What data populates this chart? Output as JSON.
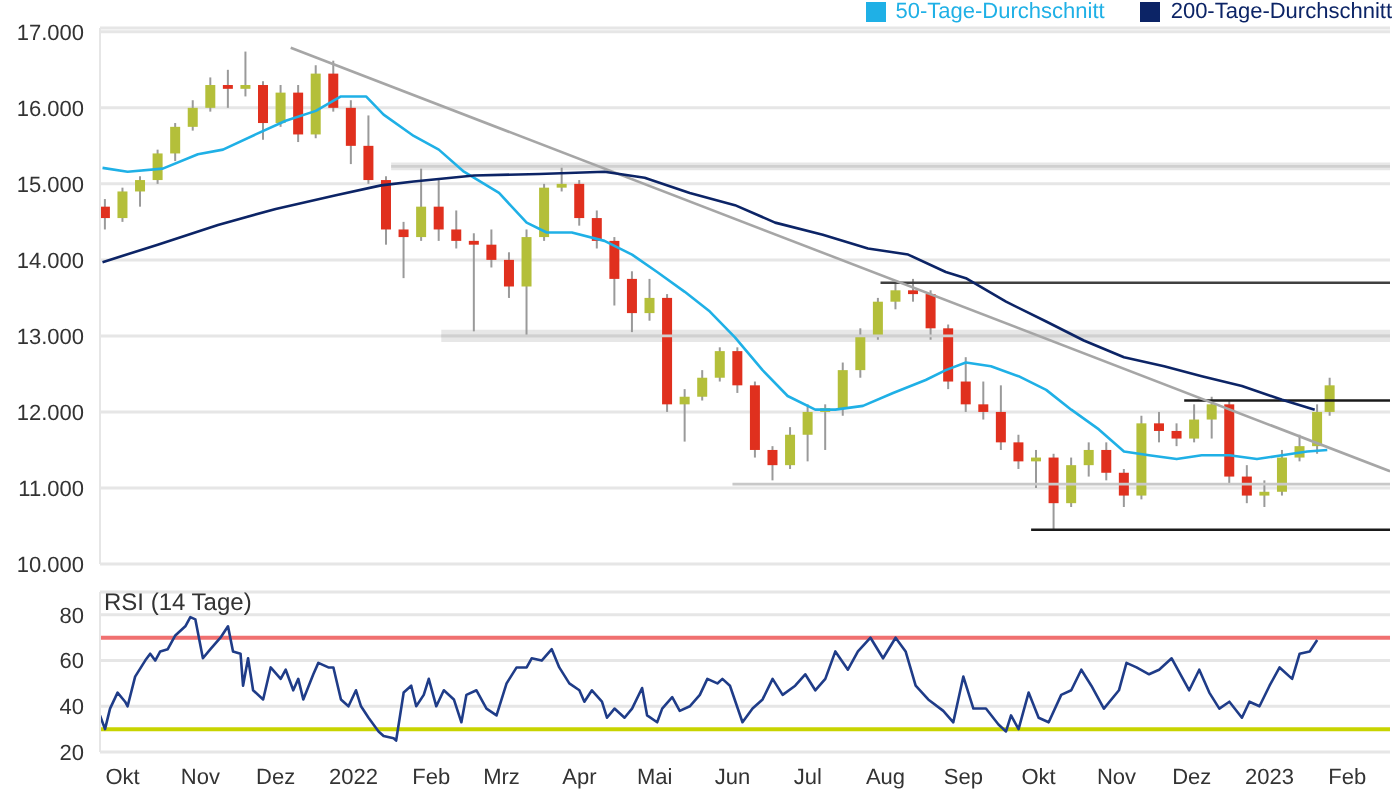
{
  "chart_data": [
    {
      "type": "candlestick",
      "xlim": [
        "2021-09-22",
        "2023-02-18"
      ],
      "ylim": [
        10000,
        17050
      ],
      "yticks": [
        {
          "value": 10000,
          "label": "10.000"
        },
        {
          "value": 11000,
          "label": "11.000"
        },
        {
          "value": 12000,
          "label": "12.000"
        },
        {
          "value": 13000,
          "label": "13.000"
        },
        {
          "value": 14000,
          "label": "14.000"
        },
        {
          "value": 15000,
          "label": "15.000"
        },
        {
          "value": 16000,
          "label": "16.000"
        },
        {
          "value": 17000,
          "label": "17.000"
        }
      ],
      "grid": "y",
      "legend": "top right",
      "tick_labels": "y",
      "series": [
        {
          "x": [
            "2021-09-24",
            "2021-10-01",
            "2021-10-08",
            "2021-10-15",
            "2021-10-22",
            "2021-10-29",
            "2021-11-05",
            "2021-11-12",
            "2021-11-19",
            "2021-11-26",
            "2021-12-03",
            "2021-12-10",
            "2021-12-17",
            "2021-12-24",
            "2021-12-31",
            "2022-01-07",
            "2022-01-14",
            "2022-01-21",
            "2022-01-28",
            "2022-02-04",
            "2022-02-11",
            "2022-02-18",
            "2022-02-25",
            "2022-03-04",
            "2022-03-11",
            "2022-03-18",
            "2022-03-25",
            "2022-04-01",
            "2022-04-08",
            "2022-04-15",
            "2022-04-22",
            "2022-04-29",
            "2022-05-06",
            "2022-05-13",
            "2022-05-20",
            "2022-05-27",
            "2022-06-03",
            "2022-06-10",
            "2022-06-17",
            "2022-06-24",
            "2022-07-01",
            "2022-07-08",
            "2022-07-15",
            "2022-07-22",
            "2022-07-29",
            "2022-08-05",
            "2022-08-12",
            "2022-08-19",
            "2022-08-26",
            "2022-09-02",
            "2022-09-09",
            "2022-09-16",
            "2022-09-23",
            "2022-09-30",
            "2022-10-07",
            "2022-10-14",
            "2022-10-21",
            "2022-10-28",
            "2022-11-04",
            "2022-11-11",
            "2022-11-18",
            "2022-11-25",
            "2022-12-02",
            "2022-12-09",
            "2022-12-16",
            "2022-12-23",
            "2022-12-30",
            "2023-01-06",
            "2023-01-13",
            "2023-01-20",
            "2023-01-25"
          ],
          "ohlc": [
            [
              14700,
              14800,
              14400,
              14550
            ],
            [
              14550,
              14950,
              14500,
              14900
            ],
            [
              14900,
              15100,
              14700,
              15050
            ],
            [
              15050,
              15450,
              15000,
              15400
            ],
            [
              15400,
              15800,
              15300,
              15750
            ],
            [
              15750,
              16100,
              15700,
              16000
            ],
            [
              16000,
              16400,
              15950,
              16300
            ],
            [
              16300,
              16500,
              16000,
              16250
            ],
            [
              16250,
              16740,
              16150,
              16300
            ],
            [
              16300,
              16350,
              15580,
              15800
            ],
            [
              15800,
              16300,
              15750,
              16200
            ],
            [
              16200,
              16300,
              15550,
              15650
            ],
            [
              15650,
              16560,
              15600,
              16450
            ],
            [
              16450,
              16620,
              15950,
              16000
            ],
            [
              16000,
              16100,
              15260,
              15500
            ],
            [
              15500,
              15900,
              15000,
              15050
            ],
            [
              15050,
              15100,
              14200,
              14400
            ],
            [
              14400,
              14500,
              13760,
              14300
            ],
            [
              14300,
              15200,
              14250,
              14700
            ],
            [
              14700,
              15050,
              14250,
              14400
            ],
            [
              14400,
              14650,
              14150,
              14250
            ],
            [
              14250,
              14350,
              13060,
              14200
            ],
            [
              14200,
              14400,
              13900,
              14000
            ],
            [
              14000,
              14100,
              13500,
              13650
            ],
            [
              13650,
              14400,
              13000,
              14300
            ],
            [
              14300,
              15000,
              14250,
              14950
            ],
            [
              14950,
              15250,
              14900,
              15000
            ],
            [
              15000,
              15050,
              14450,
              14550
            ],
            [
              14550,
              14650,
              14150,
              14250
            ],
            [
              14250,
              14300,
              13400,
              13750
            ],
            [
              13750,
              13850,
              13050,
              13300
            ],
            [
              13300,
              13750,
              13200,
              13500
            ],
            [
              13500,
              13550,
              12000,
              12100
            ],
            [
              12100,
              12300,
              11610,
              12200
            ],
            [
              12200,
              12550,
              12150,
              12450
            ],
            [
              12450,
              12850,
              12400,
              12800
            ],
            [
              12800,
              12850,
              12250,
              12350
            ],
            [
              12350,
              12400,
              11400,
              11500
            ],
            [
              11500,
              11550,
              11100,
              11300
            ],
            [
              11300,
              11800,
              11250,
              11700
            ],
            [
              11700,
              12100,
              11350,
              12000
            ],
            [
              12000,
              12100,
              11500,
              12050
            ],
            [
              12050,
              12650,
              11950,
              12550
            ],
            [
              12550,
              13100,
              12450,
              13000
            ],
            [
              13000,
              13500,
              12950,
              13450
            ],
            [
              13450,
              13700,
              13350,
              13600
            ],
            [
              13600,
              13750,
              13450,
              13550
            ],
            [
              13550,
              13600,
              12950,
              13100
            ],
            [
              13100,
              13150,
              12300,
              12400
            ],
            [
              12400,
              12720,
              12000,
              12100
            ],
            [
              12100,
              12400,
              11900,
              12000
            ],
            [
              12000,
              12350,
              11500,
              11600
            ],
            [
              11600,
              11700,
              11250,
              11350
            ],
            [
              11350,
              11500,
              11000,
              11400
            ],
            [
              11400,
              11450,
              10450,
              10800
            ],
            [
              10800,
              11400,
              10750,
              11300
            ],
            [
              11300,
              11600,
              11150,
              11500
            ],
            [
              11500,
              11600,
              11100,
              11200
            ],
            [
              11200,
              11250,
              10750,
              10900
            ],
            [
              10900,
              11950,
              10850,
              11850
            ],
            [
              11850,
              12000,
              11600,
              11750
            ],
            [
              11750,
              11850,
              11550,
              11650
            ],
            [
              11650,
              12100,
              11600,
              11900
            ],
            [
              11900,
              12200,
              11650,
              12100
            ],
            [
              12100,
              12150,
              11050,
              11150
            ],
            [
              11150,
              11300,
              10800,
              10900
            ],
            [
              10900,
              11100,
              10750,
              10950
            ],
            [
              10950,
              11500,
              10900,
              11400
            ],
            [
              11400,
              11700,
              11350,
              11550
            ],
            [
              11550,
              12100,
              11450,
              12000
            ],
            [
              12000,
              12450,
              11950,
              12350
            ]
          ],
          "colors": [
            "#e0301e",
            "#b4bf3a",
            "#b4bf3a",
            "#b4bf3a",
            "#b4bf3a",
            "#b4bf3a",
            "#b4bf3a",
            "#e0301e",
            "#b4bf3a",
            "#e0301e",
            "#b4bf3a",
            "#e0301e",
            "#b4bf3a",
            "#e0301e",
            "#e0301e",
            "#e0301e",
            "#e0301e",
            "#e0301e",
            "#b4bf3a",
            "#e0301e",
            "#e0301e",
            "#e0301e",
            "#e0301e",
            "#e0301e",
            "#b4bf3a",
            "#b4bf3a",
            "#b4bf3a",
            "#e0301e",
            "#e0301e",
            "#e0301e",
            "#e0301e",
            "#b4bf3a",
            "#e0301e",
            "#b4bf3a",
            "#b4bf3a",
            "#b4bf3a",
            "#e0301e",
            "#e0301e",
            "#e0301e",
            "#b4bf3a",
            "#b4bf3a",
            "#b4bf3a",
            "#b4bf3a",
            "#b4bf3a",
            "#b4bf3a",
            "#b4bf3a",
            "#e0301e",
            "#e0301e",
            "#e0301e",
            "#e0301e",
            "#e0301e",
            "#e0301e",
            "#e0301e",
            "#b4bf3a",
            "#e0301e",
            "#b4bf3a",
            "#b4bf3a",
            "#e0301e",
            "#e0301e",
            "#b4bf3a",
            "#e0301e",
            "#e0301e",
            "#b4bf3a",
            "#b4bf3a",
            "#e0301e",
            "#e0301e",
            "#b4bf3a",
            "#b4bf3a",
            "#b4bf3a",
            "#b4bf3a",
            "#b4bf3a"
          ]
        },
        {
          "type": "line",
          "color": "#d0d0d0",
          "x": [
            "2022-01-16",
            "2023-02-18"
          ],
          "values": [
            15230,
            15230
          ],
          "lower": [
            15180,
            15180
          ],
          "upper": [
            15280,
            15280
          ]
        },
        {
          "type": "line",
          "color": "#d0d0d0",
          "x": [
            "2022-02-05",
            "2023-02-18"
          ],
          "values": [
            13000,
            13000
          ],
          "lower": [
            12920,
            12920
          ],
          "upper": [
            13080,
            13080
          ]
        },
        {
          "type": "line",
          "color": "#404040",
          "x": [
            "2022-07-30",
            "2023-02-18"
          ],
          "values": [
            13700,
            13700
          ]
        },
        {
          "type": "line",
          "color": "#1a1a1a",
          "x": [
            "2022-11-28",
            "2023-02-18"
          ],
          "values": [
            12150,
            12150
          ]
        },
        {
          "type": "line",
          "color": "#c8c8c8",
          "x": [
            "2022-06-01",
            "2023-02-18"
          ],
          "values": [
            11050,
            11050
          ]
        },
        {
          "type": "line",
          "color": "#1a1a1a",
          "x": [
            "2022-09-28",
            "2023-02-18"
          ],
          "values": [
            10450,
            10450
          ]
        },
        {
          "type": "line",
          "color": "#a6a6a6",
          "x": [
            "2021-12-07",
            "2023-02-18"
          ],
          "values": [
            16790,
            11220
          ]
        },
        {
          "type": "line",
          "name": "50-Tage-Durchschnitt",
          "color": "#1fb0e6",
          "x": [
            "2021-09-23",
            "2021-10-03",
            "2021-10-17",
            "2021-10-31",
            "2021-11-10",
            "2021-11-23",
            "2021-12-05",
            "2021-12-17",
            "2021-12-27",
            "2022-01-06",
            "2022-01-13",
            "2022-01-25",
            "2022-02-04",
            "2022-02-14",
            "2022-02-28",
            "2022-03-11",
            "2022-03-19",
            "2022-03-29",
            "2022-04-11",
            "2022-04-22",
            "2022-05-02",
            "2022-05-13",
            "2022-05-23",
            "2022-06-02",
            "2022-06-13",
            "2022-06-23",
            "2022-07-04",
            "2022-07-12",
            "2022-07-23",
            "2022-08-04",
            "2022-08-17",
            "2022-08-25",
            "2022-09-02",
            "2022-09-12",
            "2022-09-23",
            "2022-10-04",
            "2022-10-14",
            "2022-10-25",
            "2022-11-04",
            "2022-11-14",
            "2022-11-25",
            "2022-12-05",
            "2022-12-16",
            "2022-12-27",
            "2023-01-06",
            "2023-01-16",
            "2023-01-24"
          ],
          "values": [
            15210,
            15160,
            15200,
            15390,
            15450,
            15650,
            15830,
            15960,
            16150,
            16150,
            15910,
            15630,
            15450,
            15160,
            14880,
            14490,
            14360,
            14360,
            14250,
            14070,
            13840,
            13580,
            13320,
            12980,
            12550,
            12210,
            12030,
            12030,
            12080,
            12250,
            12420,
            12550,
            12650,
            12600,
            12470,
            12290,
            12030,
            11770,
            11480,
            11430,
            11380,
            11430,
            11430,
            11380,
            11430,
            11480,
            11500
          ]
        },
        {
          "type": "line",
          "name": "200-Tage-Durchschnitt",
          "color": "#0c2466",
          "x": [
            "2021-09-23",
            "2021-10-15",
            "2021-11-08",
            "2021-12-01",
            "2021-12-25",
            "2022-01-12",
            "2022-01-25",
            "2022-02-18",
            "2022-03-16",
            "2022-04-11",
            "2022-04-27",
            "2022-05-15",
            "2022-06-02",
            "2022-06-18",
            "2022-07-07",
            "2022-07-25",
            "2022-08-10",
            "2022-08-25",
            "2022-09-02",
            "2022-09-18",
            "2022-10-04",
            "2022-10-19",
            "2022-11-04",
            "2022-11-20",
            "2022-12-05",
            "2022-12-21",
            "2023-01-06",
            "2023-01-19"
          ],
          "values": [
            13970,
            14200,
            14460,
            14670,
            14850,
            14980,
            15030,
            15110,
            15130,
            15160,
            15080,
            14880,
            14720,
            14490,
            14330,
            14150,
            14070,
            13840,
            13760,
            13450,
            13190,
            12940,
            12720,
            12600,
            12470,
            12340,
            12160,
            12030
          ]
        }
      ]
    },
    {
      "type": "line",
      "title": "RSI (14 Tage)",
      "xlim": [
        "2021-09-22",
        "2023-02-18"
      ],
      "xticks": [
        {
          "value": "2021-10-01",
          "label": "Okt"
        },
        {
          "value": "2021-11-01",
          "label": "Nov"
        },
        {
          "value": "2021-12-01",
          "label": "Dez"
        },
        {
          "value": "2022-01-01",
          "label": "2022"
        },
        {
          "value": "2022-02-01",
          "label": "Feb"
        },
        {
          "value": "2022-03-01",
          "label": "Mrz"
        },
        {
          "value": "2022-04-01",
          "label": "Apr"
        },
        {
          "value": "2022-05-01",
          "label": "Mai"
        },
        {
          "value": "2022-06-01",
          "label": "Jun"
        },
        {
          "value": "2022-07-01",
          "label": "Jul"
        },
        {
          "value": "2022-08-01",
          "label": "Aug"
        },
        {
          "value": "2022-09-01",
          "label": "Sep"
        },
        {
          "value": "2022-10-01",
          "label": "Okt"
        },
        {
          "value": "2022-11-01",
          "label": "Nov"
        },
        {
          "value": "2022-12-01",
          "label": "Dez"
        },
        {
          "value": "2023-01-01",
          "label": "2023"
        },
        {
          "value": "2023-02-01",
          "label": "Feb"
        }
      ],
      "ylim": [
        20,
        90
      ],
      "yticks": [
        20,
        40,
        60,
        80
      ],
      "grid": "y",
      "ref_lines": [
        {
          "axis": "y",
          "value": 70,
          "color": "#f07070"
        },
        {
          "axis": "y",
          "value": 30,
          "color": "#c8d400"
        }
      ],
      "series": [
        {
          "color": "#1f3c88",
          "x": [
            "2021-09-22",
            "2021-09-24",
            "2021-09-26",
            "2021-09-29",
            "2021-10-02",
            "2021-10-03",
            "2021-10-06",
            "2021-10-10",
            "2021-10-12",
            "2021-10-14",
            "2021-10-16",
            "2021-10-19",
            "2021-10-22",
            "2021-10-26",
            "2021-10-28",
            "2021-10-30",
            "2021-11-02",
            "2021-11-05",
            "2021-11-09",
            "2021-11-12",
            "2021-11-14",
            "2021-11-17",
            "2021-11-18",
            "2021-11-20",
            "2021-11-22",
            "2021-11-26",
            "2021-11-29",
            "2021-12-03",
            "2021-12-05",
            "2021-12-08",
            "2021-12-10",
            "2021-12-12",
            "2021-12-16",
            "2021-12-18",
            "2021-12-22",
            "2021-12-24",
            "2021-12-27",
            "2021-12-30",
            "2022-01-02",
            "2022-01-04",
            "2022-01-07",
            "2022-01-11",
            "2022-01-13",
            "2022-01-17",
            "2022-01-18",
            "2022-01-21",
            "2022-01-24",
            "2022-01-26",
            "2022-01-29",
            "2022-01-31",
            "2022-02-03",
            "2022-02-06",
            "2022-02-10",
            "2022-02-13",
            "2022-02-15",
            "2022-02-19",
            "2022-02-23",
            "2022-02-27",
            "2022-03-03",
            "2022-03-07",
            "2022-03-11",
            "2022-03-13",
            "2022-03-17",
            "2022-03-21",
            "2022-03-24",
            "2022-03-28",
            "2022-04-01",
            "2022-04-03",
            "2022-04-06",
            "2022-04-10",
            "2022-04-12",
            "2022-04-15",
            "2022-04-19",
            "2022-04-22",
            "2022-04-26",
            "2022-04-28",
            "2022-05-02",
            "2022-05-04",
            "2022-05-08",
            "2022-05-11",
            "2022-05-15",
            "2022-05-19",
            "2022-05-22",
            "2022-05-26",
            "2022-05-28",
            "2022-05-31",
            "2022-06-05",
            "2022-06-09",
            "2022-06-13",
            "2022-06-17",
            "2022-06-21",
            "2022-06-26",
            "2022-06-30",
            "2022-07-04",
            "2022-07-08",
            "2022-07-12",
            "2022-07-17",
            "2022-07-21",
            "2022-07-26",
            "2022-07-31",
            "2022-08-05",
            "2022-08-09",
            "2022-08-13",
            "2022-08-18",
            "2022-08-24",
            "2022-08-28",
            "2022-09-01",
            "2022-09-05",
            "2022-09-10",
            "2022-09-15",
            "2022-09-18",
            "2022-09-20",
            "2022-09-23",
            "2022-09-27",
            "2022-10-01",
            "2022-10-05",
            "2022-10-10",
            "2022-10-14",
            "2022-10-18",
            "2022-10-22",
            "2022-10-27",
            "2022-11-02",
            "2022-11-05",
            "2022-11-09",
            "2022-11-14",
            "2022-11-18",
            "2022-11-23",
            "2022-11-30",
            "2022-12-04",
            "2022-12-08",
            "2022-12-12",
            "2022-12-16",
            "2022-12-21",
            "2022-12-24",
            "2022-12-28",
            "2023-01-01",
            "2023-01-05",
            "2023-01-10",
            "2023-01-13",
            "2023-01-17",
            "2023-01-20"
          ],
          "values": [
            36,
            30,
            39,
            46,
            42,
            40,
            53,
            60,
            63,
            60,
            64,
            65,
            71,
            75,
            79,
            78,
            61,
            65,
            70,
            75,
            64,
            63,
            49,
            61,
            47,
            43,
            57,
            52,
            56,
            47,
            52,
            43,
            54,
            59,
            57,
            57,
            43,
            40,
            47,
            40,
            35,
            29,
            27,
            26,
            25,
            46,
            49,
            40,
            45,
            52,
            40,
            47,
            43,
            33,
            45,
            47,
            39,
            36,
            50,
            57,
            57,
            61,
            60,
            65,
            57,
            50,
            47,
            42,
            47,
            42,
            35,
            39,
            35,
            39,
            48,
            36,
            33,
            39,
            44,
            38,
            40,
            45,
            52,
            50,
            52,
            49,
            33,
            39,
            43,
            52,
            45,
            49,
            54,
            47,
            52,
            64,
            56,
            64,
            70,
            61,
            70,
            64,
            49,
            43,
            38,
            33,
            53,
            39,
            39,
            32,
            29,
            36,
            30,
            46,
            35,
            33,
            45,
            47,
            56,
            49,
            39,
            47,
            59,
            57,
            54,
            56,
            61,
            47,
            56,
            46,
            39,
            42,
            35,
            42,
            40,
            49,
            57,
            52,
            63,
            64,
            69
          ]
        }
      ]
    }
  ]
}
